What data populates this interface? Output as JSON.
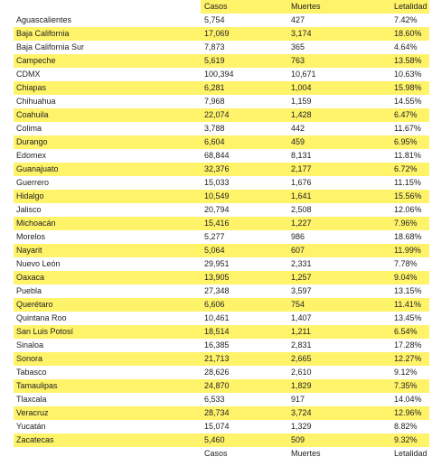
{
  "table": {
    "header": [
      "Casos",
      "Muertes",
      "Letalidad"
    ],
    "rows": [
      [
        "Aguascalientes",
        "5,754",
        "427",
        "7.42%"
      ],
      [
        "Baja California",
        "17,069",
        "3,174",
        "18.60%"
      ],
      [
        "Baja California Sur",
        "7,873",
        "365",
        "4.64%"
      ],
      [
        "Campeche",
        "5,619",
        "763",
        "13.58%"
      ],
      [
        "CDMX",
        "100,394",
        "10,671",
        "10.63%"
      ],
      [
        "Chiapas",
        "6,281",
        "1,004",
        "15.98%"
      ],
      [
        "Chihuahua",
        "7,968",
        "1,159",
        "14.55%"
      ],
      [
        "Coahuila",
        "22,074",
        "1,428",
        "6.47%"
      ],
      [
        "Colima",
        "3,788",
        "442",
        "11.67%"
      ],
      [
        "Durango",
        "6,604",
        "459",
        "6.95%"
      ],
      [
        "Edomex",
        "68,844",
        "8,131",
        "11.81%"
      ],
      [
        "Guanajuato",
        "32,376",
        "2,177",
        "6.72%"
      ],
      [
        "Guerrero",
        "15,033",
        "1,676",
        "11.15%"
      ],
      [
        "Hidalgo",
        "10,549",
        "1,641",
        "15.56%"
      ],
      [
        "Jalisco",
        "20,794",
        "2,508",
        "12.06%"
      ],
      [
        "Michoacán",
        "15,416",
        "1,227",
        "7.96%"
      ],
      [
        "Morelos",
        "5,277",
        "986",
        "18.68%"
      ],
      [
        "Nayarit",
        "5,064",
        "607",
        "11.99%"
      ],
      [
        "Nuevo León",
        "29,951",
        "2,331",
        "7.78%"
      ],
      [
        "Oaxaca",
        "13,905",
        "1,257",
        "9.04%"
      ],
      [
        "Puebla",
        "27,348",
        "3,597",
        "13.15%"
      ],
      [
        "Querétaro",
        "6,606",
        "754",
        "11.41%"
      ],
      [
        "Quintana Roo",
        "10,461",
        "1,407",
        "13.45%"
      ],
      [
        "San Luis Potosí",
        "18,514",
        "1,211",
        "6.54%"
      ],
      [
        "Sinaloa",
        "16,385",
        "2,831",
        "17.28%"
      ],
      [
        "Sonora",
        "21,713",
        "2,665",
        "12.27%"
      ],
      [
        "Tabasco",
        "28,626",
        "2,610",
        "9.12%"
      ],
      [
        "Tamaulipas",
        "24,870",
        "1,829",
        "7.35%"
      ],
      [
        "Tlaxcala",
        "6,533",
        "917",
        "14.04%"
      ],
      [
        "Veracruz",
        "28,734",
        "3,724",
        "12.96%"
      ],
      [
        "Yucatán",
        "15,074",
        "1,329",
        "8.82%"
      ],
      [
        "Zacatecas",
        "5,460",
        "509",
        "9.32%"
      ]
    ],
    "footer": [
      "Casos",
      "Muertes",
      "Letalidad"
    ]
  }
}
